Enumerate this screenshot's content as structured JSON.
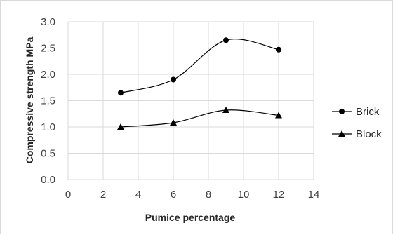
{
  "chart_data": {
    "type": "line",
    "title": "",
    "xlabel": "Pumice percentage",
    "ylabel": "Compressive strength MPa",
    "xlim": [
      0,
      14
    ],
    "ylim": [
      0,
      3.0
    ],
    "xticks": [
      0,
      2,
      4,
      6,
      8,
      10,
      12,
      14
    ],
    "yticks": [
      0.0,
      0.5,
      1.0,
      1.5,
      2.0,
      2.5,
      3.0
    ],
    "ytick_labels": [
      "0.0",
      "0.5",
      "1.0",
      "1.5",
      "2.0",
      "2.5",
      "3.0"
    ],
    "grid": true,
    "legend_position": "right",
    "series": [
      {
        "name": "Brick",
        "marker": "circle",
        "x": [
          3,
          6,
          9,
          12
        ],
        "y": [
          1.65,
          1.9,
          2.65,
          2.47
        ]
      },
      {
        "name": "Block",
        "marker": "triangle",
        "x": [
          3,
          6,
          9,
          12
        ],
        "y": [
          1.0,
          1.08,
          1.32,
          1.22
        ]
      }
    ],
    "line_color": "#000000",
    "grid_color": "#d9d9d9"
  }
}
